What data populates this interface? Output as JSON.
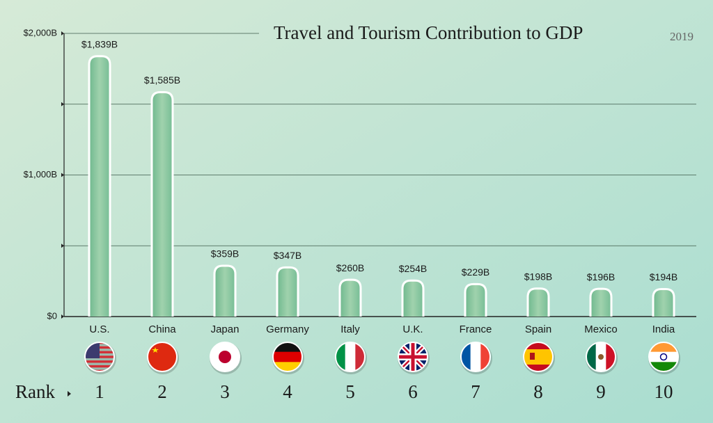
{
  "chart_data": {
    "type": "bar",
    "title": "Travel and Tourism Contribution to GDP",
    "subtitle": "2019",
    "categories": [
      "U.S.",
      "China",
      "Japan",
      "Germany",
      "Italy",
      "U.K.",
      "France",
      "Spain",
      "Mexico",
      "India"
    ],
    "values": [
      1839,
      1585,
      359,
      347,
      260,
      254,
      229,
      198,
      196,
      194
    ],
    "value_labels": [
      "$1,839B",
      "$1,585B",
      "$359B",
      "$347B",
      "$260B",
      "$254B",
      "$229B",
      "$198B",
      "$196B",
      "$194B"
    ],
    "ylim": [
      0,
      2000
    ],
    "yticks": [
      {
        "value": 0,
        "label": "$0"
      },
      {
        "value": 1000,
        "label": "$1,000B"
      },
      {
        "value": 2000,
        "label": "$2,000B"
      }
    ],
    "minor_yticks": [
      500,
      1500
    ],
    "grid": true,
    "color": "#8cc7a0",
    "rank_label": "Rank",
    "ranks": [
      1,
      2,
      3,
      4,
      5,
      6,
      7,
      8,
      9,
      10
    ]
  }
}
